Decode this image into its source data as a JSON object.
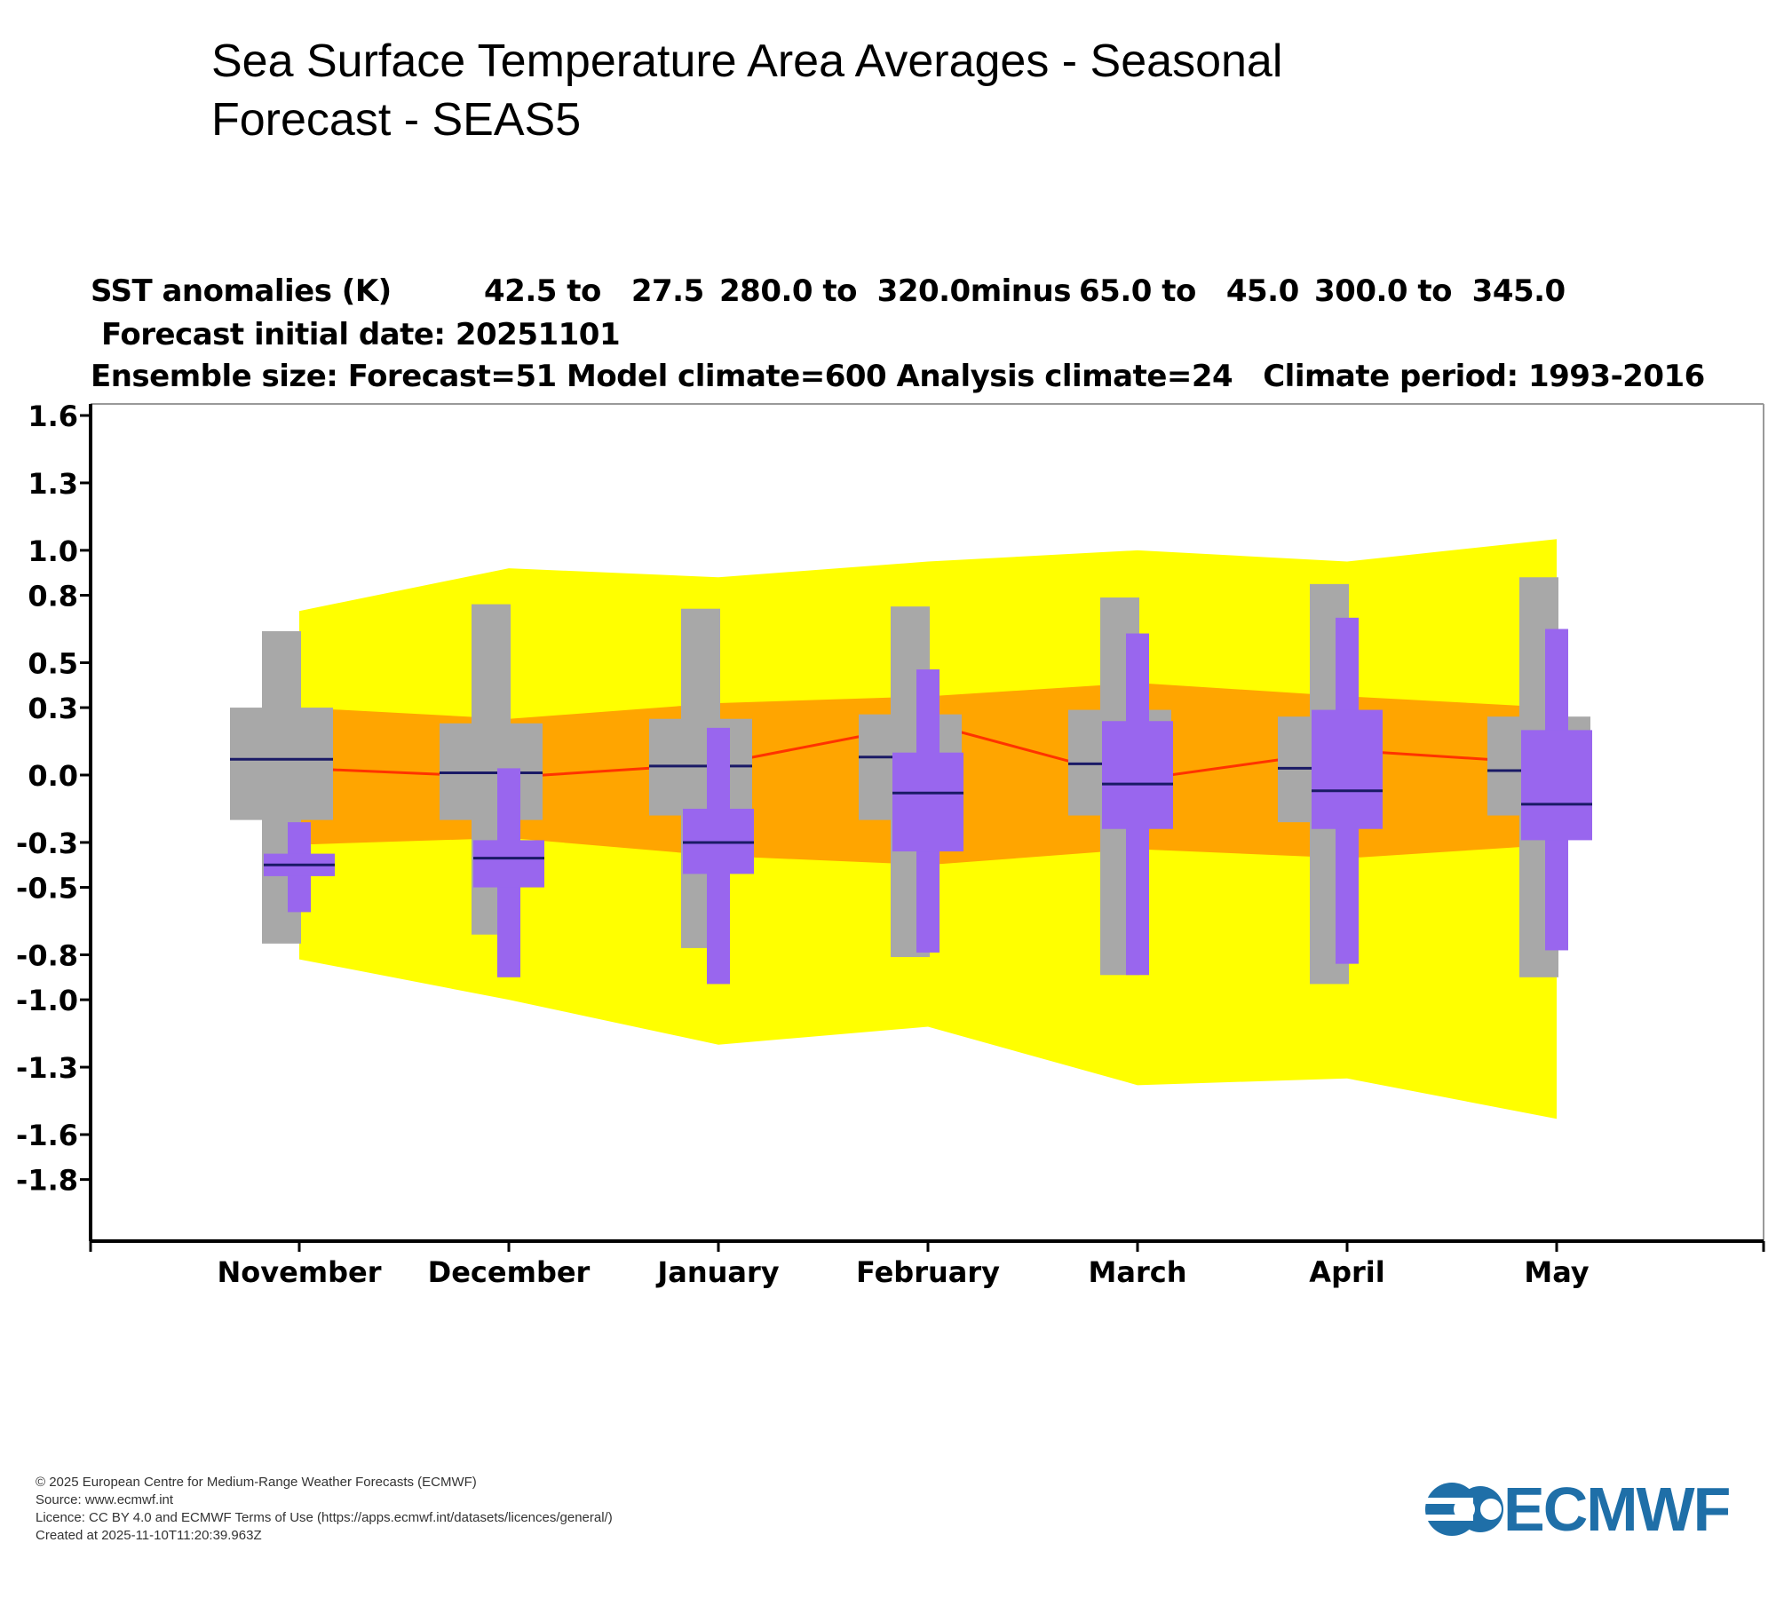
{
  "title": "Sea Surface Temperature Area Averages - Seasonal Forecast - SEAS5",
  "header": {
    "line1_label": "SST anomalies (K)",
    "line1_lat": "42.5 to   27.5",
    "line1_lon": "280.0 to  320.0minus",
    "line1_minus_lat": "65.0 to   45.0",
    "line1_minus_lon": "300.0 to  345.0",
    "line2": "Forecast initial date: 20251101",
    "line3": "Ensemble size: Forecast=51 Model climate=600 Analysis climate=24   Climate period: 1993-2016"
  },
  "chart_data": {
    "type": "boxplot-envelope",
    "ylabel": "SST anomalies (K)",
    "ylim": [
      -2.0,
      1.65
    ],
    "yticks": [
      1.6,
      1.3,
      1.0,
      0.8,
      0.5,
      0.3,
      0.0,
      -0.3,
      -0.5,
      -0.8,
      -1.0,
      -1.3,
      -1.6,
      -1.8
    ],
    "ytick_labels": [
      "1.6",
      "1.3",
      "1.0",
      "0.8",
      "0.5",
      "0.3",
      "0.0",
      "-0.3",
      "-0.5",
      "-0.8",
      "-1.0",
      "-1.3",
      "-1.6",
      "-1.8"
    ],
    "categories": [
      "November",
      "December",
      "January",
      "February",
      "March",
      "April",
      "May"
    ],
    "outer_envelope": {
      "color": "#ffff00",
      "upper": [
        0.73,
        0.92,
        0.88,
        0.95,
        1.0,
        0.95,
        1.05
      ],
      "lower": [
        -0.82,
        -1.0,
        -1.2,
        -1.12,
        -1.38,
        -1.35,
        -1.53
      ]
    },
    "inner_envelope": {
      "color": "#ffa500",
      "upper": [
        0.3,
        0.25,
        0.32,
        0.35,
        0.41,
        0.35,
        0.3
      ],
      "lower": [
        -0.31,
        -0.28,
        -0.36,
        -0.4,
        -0.33,
        -0.37,
        -0.31
      ]
    },
    "climate_median": {
      "color": "#ff3300",
      "values": [
        0.03,
        -0.01,
        0.05,
        0.23,
        -0.02,
        0.11,
        0.05
      ]
    },
    "model_climate_boxes": {
      "color": "#a8a8a8",
      "whisker_low": [
        -0.75,
        -0.71,
        -0.77,
        -0.81,
        -0.89,
        -0.93,
        -0.9
      ],
      "q1": [
        -0.2,
        -0.2,
        -0.18,
        -0.2,
        -0.18,
        -0.21,
        -0.18
      ],
      "median": [
        0.07,
        0.01,
        0.04,
        0.08,
        0.05,
        0.03,
        0.02
      ],
      "q3": [
        0.3,
        0.23,
        0.25,
        0.27,
        0.29,
        0.26,
        0.26
      ],
      "whisker_high": [
        0.64,
        0.76,
        0.74,
        0.75,
        0.79,
        0.85,
        0.88
      ]
    },
    "forecast_boxes": {
      "color": "#9966ee",
      "whisker_low": [
        -0.61,
        -0.9,
        -0.93,
        -0.79,
        -0.89,
        -0.84,
        -0.78
      ],
      "q1": [
        -0.45,
        -0.5,
        -0.44,
        -0.34,
        -0.24,
        -0.24,
        -0.29
      ],
      "median": [
        -0.4,
        -0.37,
        -0.3,
        -0.08,
        -0.04,
        -0.07,
        -0.13
      ],
      "q3": [
        -0.35,
        -0.29,
        -0.15,
        0.1,
        0.24,
        0.29,
        0.2
      ],
      "whisker_high": [
        -0.21,
        0.03,
        0.21,
        0.47,
        0.63,
        0.7,
        0.65
      ]
    }
  },
  "footer": {
    "copyright": "© 2025 European Centre for Medium-Range Weather Forecasts (ECMWF)",
    "source": "Source: www.ecmwf.int",
    "licence": "Licence: CC BY 4.0 and ECMWF Terms of Use (https://apps.ecmwf.int/datasets/licences/general/)",
    "created": "Created at 2025-11-10T11:20:39.963Z"
  },
  "logo": {
    "text": "ECMWF",
    "color": "#1f6fa8"
  }
}
